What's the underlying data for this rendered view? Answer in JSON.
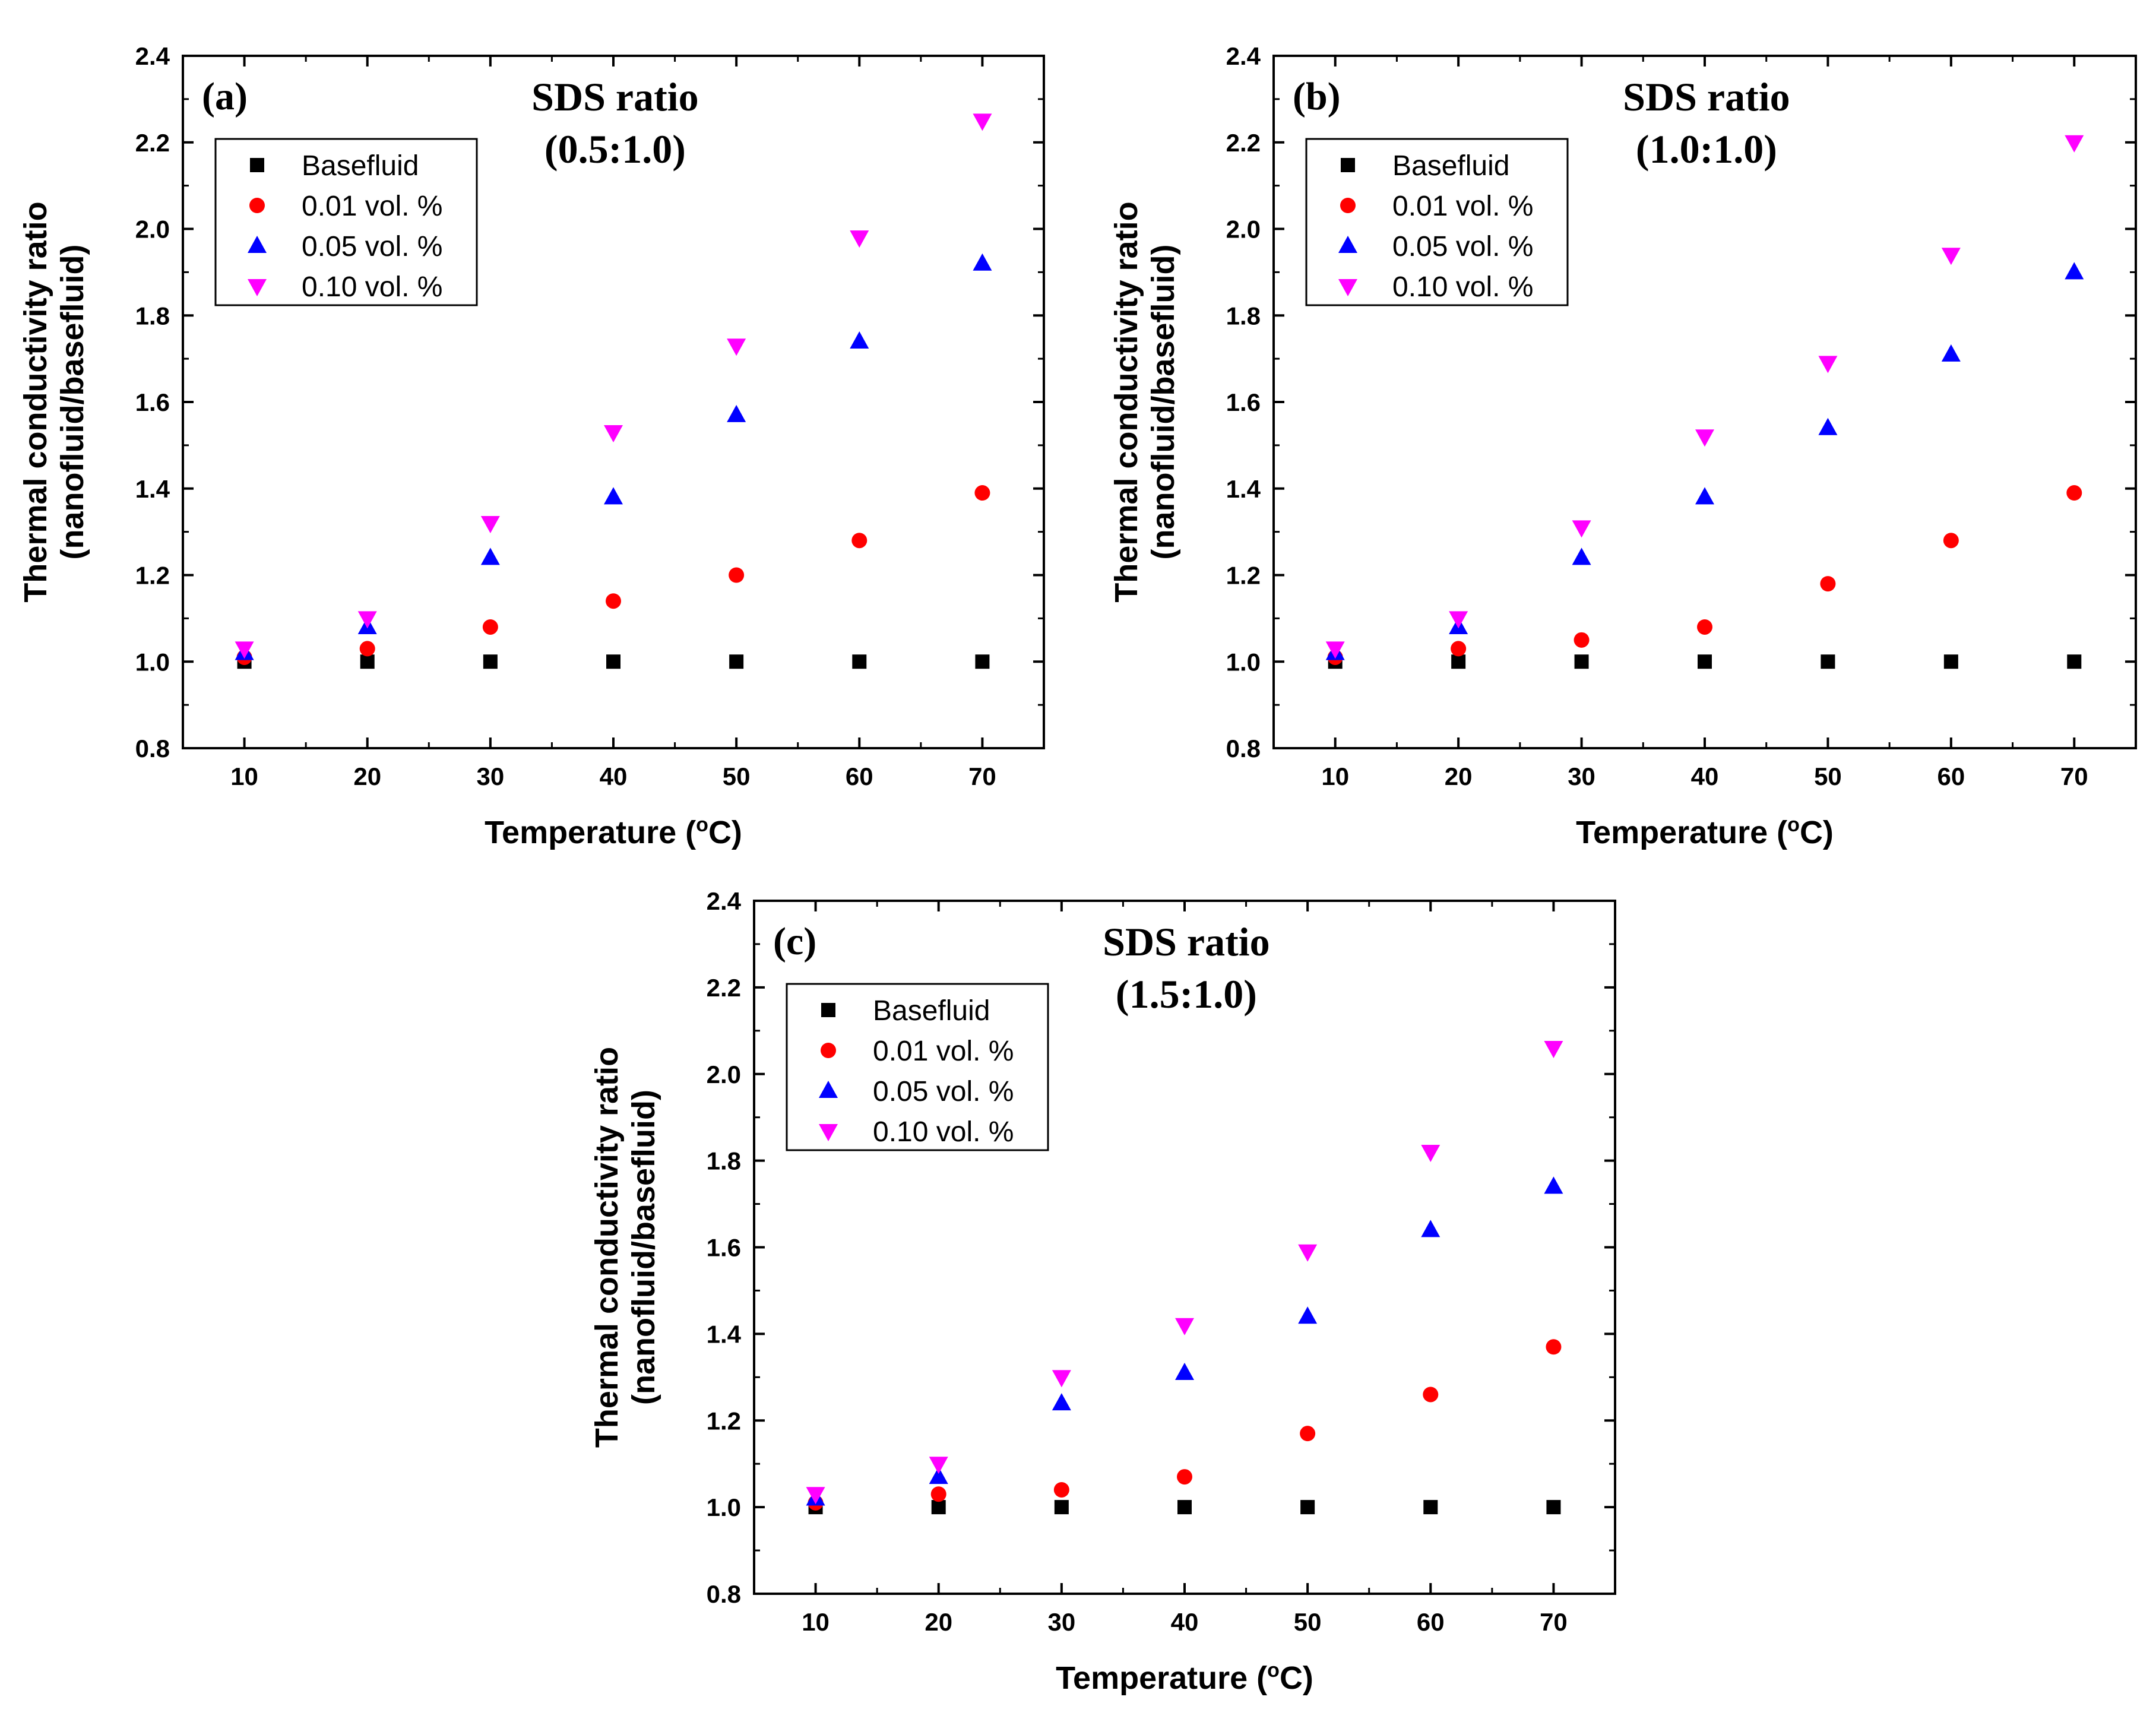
{
  "chart_data": [
    {
      "type": "scatter",
      "panel_label": "(a)",
      "title_line1": "SDS ratio",
      "title_line2": "(0.5:1.0)",
      "xlabel": "Temperature",
      "xlabel_unit": "(°C)",
      "ylabel_line1": "Thermal conductivity ratio",
      "ylabel_line2": "(nanofluid/basefluid)",
      "x": [
        10,
        20,
        30,
        40,
        50,
        60,
        70
      ],
      "xlim": [
        5,
        75
      ],
      "ylim": [
        0.8,
        2.4
      ],
      "xticks": [
        "10",
        "20",
        "30",
        "40",
        "50",
        "60",
        "70"
      ],
      "yticks": [
        "0.8",
        "1.0",
        "1.2",
        "1.4",
        "1.6",
        "1.8",
        "2.0",
        "2.2",
        "2.4"
      ],
      "legend_position": "upper-left",
      "series": [
        {
          "name": "Basefluid",
          "marker": "square",
          "color": "#000000",
          "values": [
            1.0,
            1.0,
            1.0,
            1.0,
            1.0,
            1.0,
            1.0
          ]
        },
        {
          "name": "0.01 vol. %",
          "marker": "circle",
          "color": "#ff0000",
          "values": [
            1.01,
            1.03,
            1.08,
            1.14,
            1.2,
            1.28,
            1.39
          ]
        },
        {
          "name": "0.05 vol. %",
          "marker": "triangle-up",
          "color": "#0000ff",
          "values": [
            1.02,
            1.08,
            1.24,
            1.38,
            1.57,
            1.74,
            1.92
          ]
        },
        {
          "name": "0.10 vol. %",
          "marker": "triangle-down",
          "color": "#ff00ff",
          "values": [
            1.03,
            1.1,
            1.32,
            1.53,
            1.73,
            1.98,
            2.25
          ]
        }
      ]
    },
    {
      "type": "scatter",
      "panel_label": "(b)",
      "title_line1": "SDS ratio",
      "title_line2": "(1.0:1.0)",
      "xlabel": "Temperature",
      "xlabel_unit": "(°C)",
      "ylabel_line1": "Thermal conductivity ratio",
      "ylabel_line2": "(nanofluid/basefluid)",
      "x": [
        10,
        20,
        30,
        40,
        50,
        60,
        70
      ],
      "xlim": [
        5,
        75
      ],
      "ylim": [
        0.8,
        2.4
      ],
      "xticks": [
        "10",
        "20",
        "30",
        "40",
        "50",
        "60",
        "70"
      ],
      "yticks": [
        "0.8",
        "1.0",
        "1.2",
        "1.4",
        "1.6",
        "1.8",
        "2.0",
        "2.2",
        "2.4"
      ],
      "legend_position": "upper-left",
      "series": [
        {
          "name": "Basefluid",
          "marker": "square",
          "color": "#000000",
          "values": [
            1.0,
            1.0,
            1.0,
            1.0,
            1.0,
            1.0,
            1.0
          ]
        },
        {
          "name": "0.01 vol. %",
          "marker": "circle",
          "color": "#ff0000",
          "values": [
            1.01,
            1.03,
            1.05,
            1.08,
            1.18,
            1.28,
            1.39
          ]
        },
        {
          "name": "0.05 vol. %",
          "marker": "triangle-up",
          "color": "#0000ff",
          "values": [
            1.02,
            1.08,
            1.24,
            1.38,
            1.54,
            1.71,
            1.9
          ]
        },
        {
          "name": "0.10 vol. %",
          "marker": "triangle-down",
          "color": "#ff00ff",
          "values": [
            1.03,
            1.1,
            1.31,
            1.52,
            1.69,
            1.94,
            2.2
          ]
        }
      ]
    },
    {
      "type": "scatter",
      "panel_label": "(c)",
      "title_line1": "SDS ratio",
      "title_line2": "(1.5:1.0)",
      "xlabel": "Temperature",
      "xlabel_unit": "(°C)",
      "ylabel_line1": "Thermal conductivity ratio",
      "ylabel_line2": "(nanofluid/basefluid)",
      "x": [
        10,
        20,
        30,
        40,
        50,
        60,
        70
      ],
      "xlim": [
        5,
        75
      ],
      "ylim": [
        0.8,
        2.4
      ],
      "xticks": [
        "10",
        "20",
        "30",
        "40",
        "50",
        "60",
        "70"
      ],
      "yticks": [
        "0.8",
        "1.0",
        "1.2",
        "1.4",
        "1.6",
        "1.8",
        "2.0",
        "2.2",
        "2.4"
      ],
      "legend_position": "upper-left",
      "series": [
        {
          "name": "Basefluid",
          "marker": "square",
          "color": "#000000",
          "values": [
            1.0,
            1.0,
            1.0,
            1.0,
            1.0,
            1.0,
            1.0
          ]
        },
        {
          "name": "0.01 vol. %",
          "marker": "circle",
          "color": "#ff0000",
          "values": [
            1.01,
            1.03,
            1.04,
            1.07,
            1.17,
            1.26,
            1.37
          ]
        },
        {
          "name": "0.05 vol. %",
          "marker": "triangle-up",
          "color": "#0000ff",
          "values": [
            1.02,
            1.07,
            1.24,
            1.31,
            1.44,
            1.64,
            1.74
          ]
        },
        {
          "name": "0.10 vol. %",
          "marker": "triangle-down",
          "color": "#ff00ff",
          "values": [
            1.03,
            1.1,
            1.3,
            1.42,
            1.59,
            1.82,
            2.06
          ]
        }
      ]
    }
  ]
}
